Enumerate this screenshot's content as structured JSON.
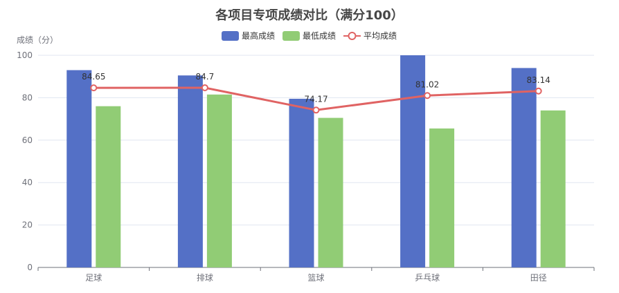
{
  "chart_data": {
    "type": "bar",
    "title": "各项目专项成绩对比（满分100）",
    "ylabel": "成绩（分）",
    "xlabel": "",
    "ylim": [
      0,
      100
    ],
    "yticks": [
      0,
      20,
      40,
      60,
      80,
      100
    ],
    "grid": true,
    "legend_position": "top-center",
    "categories": [
      "足球",
      "排球",
      "篮球",
      "乒乓球",
      "田径"
    ],
    "series": [
      {
        "name": "最高成绩",
        "type": "bar",
        "color": "#5470c6",
        "values": [
          93,
          90.5,
          79.5,
          100,
          94
        ]
      },
      {
        "name": "最低成绩",
        "type": "bar",
        "color": "#91cc75",
        "values": [
          76,
          81.5,
          70.5,
          65.5,
          74
        ]
      },
      {
        "name": "平均成绩",
        "type": "line",
        "color": "#e06363",
        "values": [
          84.65,
          84.7,
          74.17,
          81.02,
          83.14
        ],
        "labels": [
          "84.65",
          "84.7",
          "74.17",
          "81.02",
          "83.14"
        ]
      }
    ]
  }
}
